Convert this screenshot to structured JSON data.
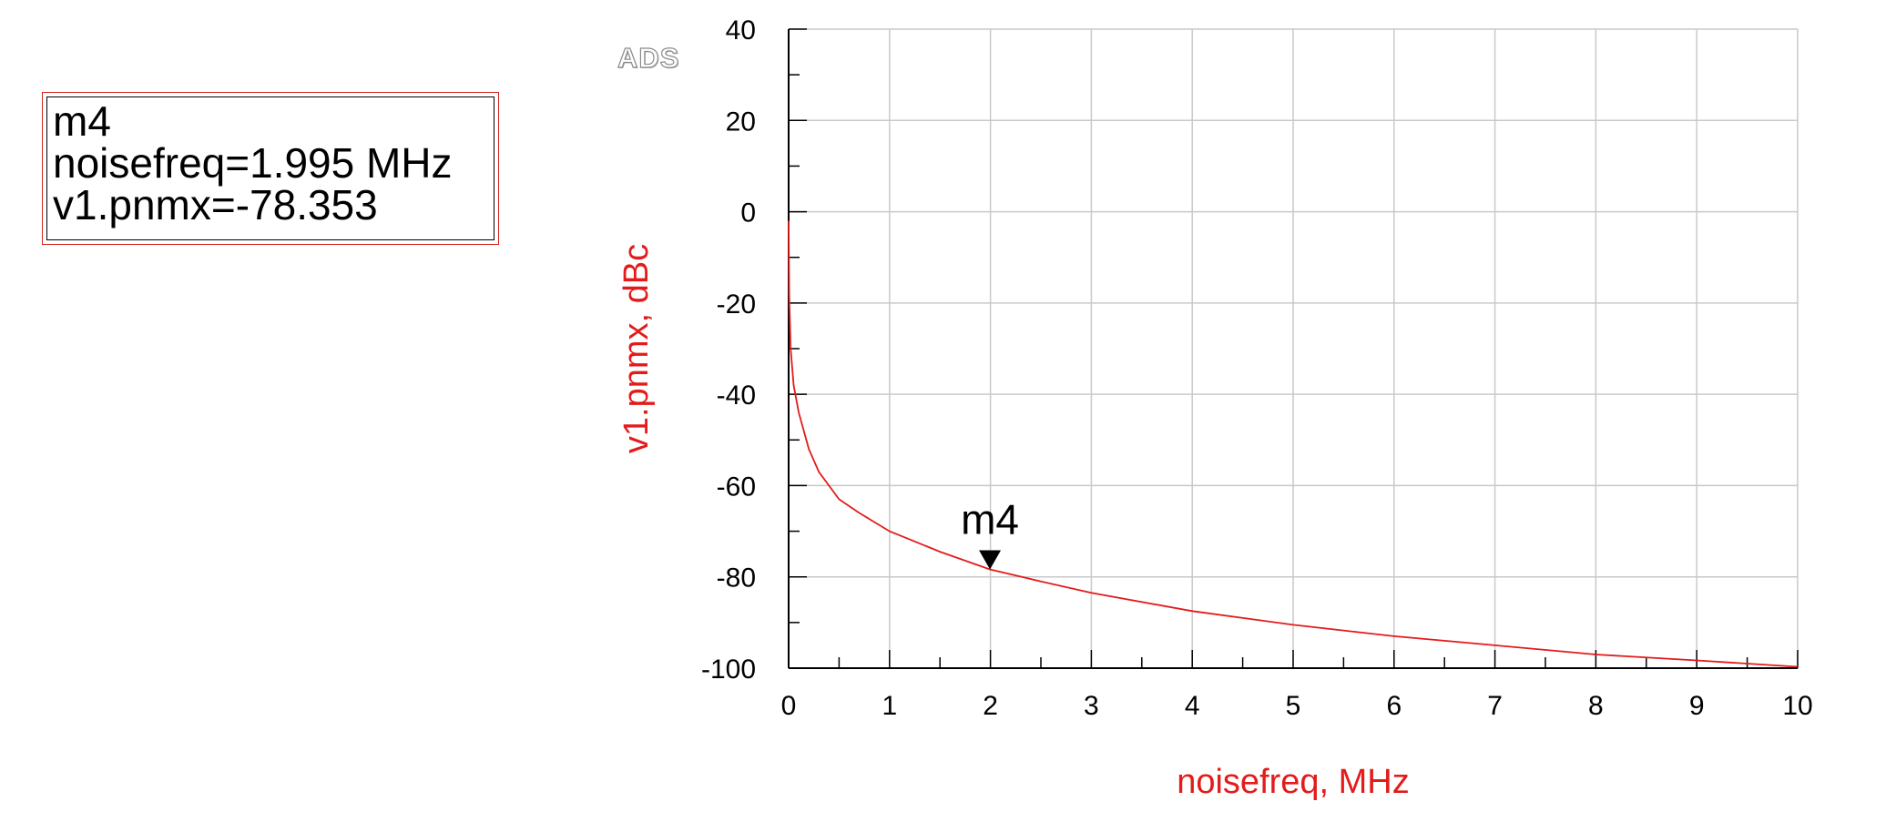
{
  "logo_text": "ADS",
  "marker_readout": {
    "name": "m4",
    "line_x": "noisefreq=1.995 MHz",
    "line_y": "v1.pnmx=-78.353"
  },
  "chart_data": {
    "type": "line",
    "title": "",
    "xlabel": "noisefreq, MHz",
    "ylabel": "v1.pnmx, dBc",
    "xlim": [
      0,
      10
    ],
    "ylim": [
      -100,
      40
    ],
    "x_ticks": [
      0,
      1,
      2,
      3,
      4,
      5,
      6,
      7,
      8,
      9,
      10
    ],
    "y_ticks": [
      40,
      20,
      0,
      -20,
      -40,
      -60,
      -80,
      -100
    ],
    "x_tick_labels": [
      "0",
      "1",
      "2",
      "3",
      "4",
      "5",
      "6",
      "7",
      "8",
      "9",
      "10"
    ],
    "y_tick_labels": [
      "40",
      "20",
      "0",
      "-20",
      "-40",
      "-60",
      "-80",
      "-100"
    ],
    "grid": true,
    "series": [
      {
        "color": "#e31b1b",
        "x": [
          0.0,
          0.005,
          0.02,
          0.05,
          0.1,
          0.2,
          0.3,
          0.5,
          0.7,
          1.0,
          1.5,
          1.995,
          2.5,
          3.0,
          4.0,
          5.0,
          6.0,
          7.0,
          8.0,
          9.0,
          10.0
        ],
        "y": [
          -2,
          -18,
          -30,
          -38,
          -44,
          -52,
          -57,
          -63,
          -66,
          -70,
          -74.5,
          -78.353,
          -81,
          -83.5,
          -87.5,
          -90.5,
          -93,
          -95,
          -97,
          -98.3,
          -99.7
        ]
      }
    ],
    "markers": [
      {
        "name": "m4",
        "x": 1.995,
        "y": -78.353
      }
    ]
  }
}
